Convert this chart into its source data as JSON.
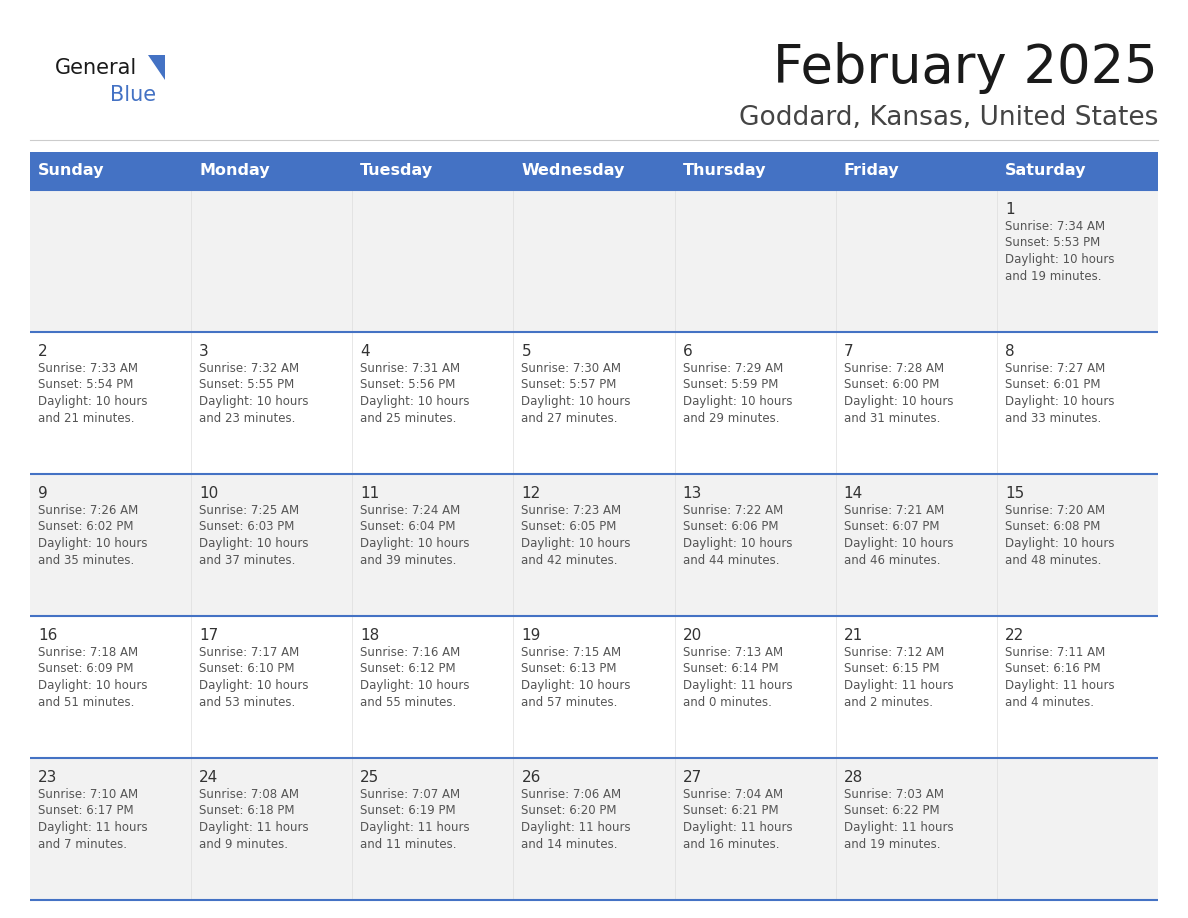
{
  "title": "February 2025",
  "subtitle": "Goddard, Kansas, United States",
  "header_bg": "#4472C4",
  "header_text_color": "#FFFFFF",
  "row_bg_light": "#F2F2F2",
  "row_bg_white": "#FFFFFF",
  "cell_border_color": "#4472C4",
  "day_headers": [
    "Sunday",
    "Monday",
    "Tuesday",
    "Wednesday",
    "Thursday",
    "Friday",
    "Saturday"
  ],
  "title_color": "#1a1a1a",
  "subtitle_color": "#444444",
  "day_num_color": "#333333",
  "cell_text_color": "#555555",
  "logo_general_color": "#1a1a1a",
  "logo_blue_color": "#4472C4",
  "logo_triangle_color": "#4472C4",
  "calendar": [
    [
      {
        "day": "",
        "sunrise": "",
        "sunset": "",
        "daylight": ""
      },
      {
        "day": "",
        "sunrise": "",
        "sunset": "",
        "daylight": ""
      },
      {
        "day": "",
        "sunrise": "",
        "sunset": "",
        "daylight": ""
      },
      {
        "day": "",
        "sunrise": "",
        "sunset": "",
        "daylight": ""
      },
      {
        "day": "",
        "sunrise": "",
        "sunset": "",
        "daylight": ""
      },
      {
        "day": "",
        "sunrise": "",
        "sunset": "",
        "daylight": ""
      },
      {
        "day": "1",
        "sunrise": "7:34 AM",
        "sunset": "5:53 PM",
        "daylight": "10 hours\nand 19 minutes."
      }
    ],
    [
      {
        "day": "2",
        "sunrise": "7:33 AM",
        "sunset": "5:54 PM",
        "daylight": "10 hours\nand 21 minutes."
      },
      {
        "day": "3",
        "sunrise": "7:32 AM",
        "sunset": "5:55 PM",
        "daylight": "10 hours\nand 23 minutes."
      },
      {
        "day": "4",
        "sunrise": "7:31 AM",
        "sunset": "5:56 PM",
        "daylight": "10 hours\nand 25 minutes."
      },
      {
        "day": "5",
        "sunrise": "7:30 AM",
        "sunset": "5:57 PM",
        "daylight": "10 hours\nand 27 minutes."
      },
      {
        "day": "6",
        "sunrise": "7:29 AM",
        "sunset": "5:59 PM",
        "daylight": "10 hours\nand 29 minutes."
      },
      {
        "day": "7",
        "sunrise": "7:28 AM",
        "sunset": "6:00 PM",
        "daylight": "10 hours\nand 31 minutes."
      },
      {
        "day": "8",
        "sunrise": "7:27 AM",
        "sunset": "6:01 PM",
        "daylight": "10 hours\nand 33 minutes."
      }
    ],
    [
      {
        "day": "9",
        "sunrise": "7:26 AM",
        "sunset": "6:02 PM",
        "daylight": "10 hours\nand 35 minutes."
      },
      {
        "day": "10",
        "sunrise": "7:25 AM",
        "sunset": "6:03 PM",
        "daylight": "10 hours\nand 37 minutes."
      },
      {
        "day": "11",
        "sunrise": "7:24 AM",
        "sunset": "6:04 PM",
        "daylight": "10 hours\nand 39 minutes."
      },
      {
        "day": "12",
        "sunrise": "7:23 AM",
        "sunset": "6:05 PM",
        "daylight": "10 hours\nand 42 minutes."
      },
      {
        "day": "13",
        "sunrise": "7:22 AM",
        "sunset": "6:06 PM",
        "daylight": "10 hours\nand 44 minutes."
      },
      {
        "day": "14",
        "sunrise": "7:21 AM",
        "sunset": "6:07 PM",
        "daylight": "10 hours\nand 46 minutes."
      },
      {
        "day": "15",
        "sunrise": "7:20 AM",
        "sunset": "6:08 PM",
        "daylight": "10 hours\nand 48 minutes."
      }
    ],
    [
      {
        "day": "16",
        "sunrise": "7:18 AM",
        "sunset": "6:09 PM",
        "daylight": "10 hours\nand 51 minutes."
      },
      {
        "day": "17",
        "sunrise": "7:17 AM",
        "sunset": "6:10 PM",
        "daylight": "10 hours\nand 53 minutes."
      },
      {
        "day": "18",
        "sunrise": "7:16 AM",
        "sunset": "6:12 PM",
        "daylight": "10 hours\nand 55 minutes."
      },
      {
        "day": "19",
        "sunrise": "7:15 AM",
        "sunset": "6:13 PM",
        "daylight": "10 hours\nand 57 minutes."
      },
      {
        "day": "20",
        "sunrise": "7:13 AM",
        "sunset": "6:14 PM",
        "daylight": "11 hours\nand 0 minutes."
      },
      {
        "day": "21",
        "sunrise": "7:12 AM",
        "sunset": "6:15 PM",
        "daylight": "11 hours\nand 2 minutes."
      },
      {
        "day": "22",
        "sunrise": "7:11 AM",
        "sunset": "6:16 PM",
        "daylight": "11 hours\nand 4 minutes."
      }
    ],
    [
      {
        "day": "23",
        "sunrise": "7:10 AM",
        "sunset": "6:17 PM",
        "daylight": "11 hours\nand 7 minutes."
      },
      {
        "day": "24",
        "sunrise": "7:08 AM",
        "sunset": "6:18 PM",
        "daylight": "11 hours\nand 9 minutes."
      },
      {
        "day": "25",
        "sunrise": "7:07 AM",
        "sunset": "6:19 PM",
        "daylight": "11 hours\nand 11 minutes."
      },
      {
        "day": "26",
        "sunrise": "7:06 AM",
        "sunset": "6:20 PM",
        "daylight": "11 hours\nand 14 minutes."
      },
      {
        "day": "27",
        "sunrise": "7:04 AM",
        "sunset": "6:21 PM",
        "daylight": "11 hours\nand 16 minutes."
      },
      {
        "day": "28",
        "sunrise": "7:03 AM",
        "sunset": "6:22 PM",
        "daylight": "11 hours\nand 19 minutes."
      },
      {
        "day": "",
        "sunrise": "",
        "sunset": "",
        "daylight": ""
      }
    ]
  ]
}
